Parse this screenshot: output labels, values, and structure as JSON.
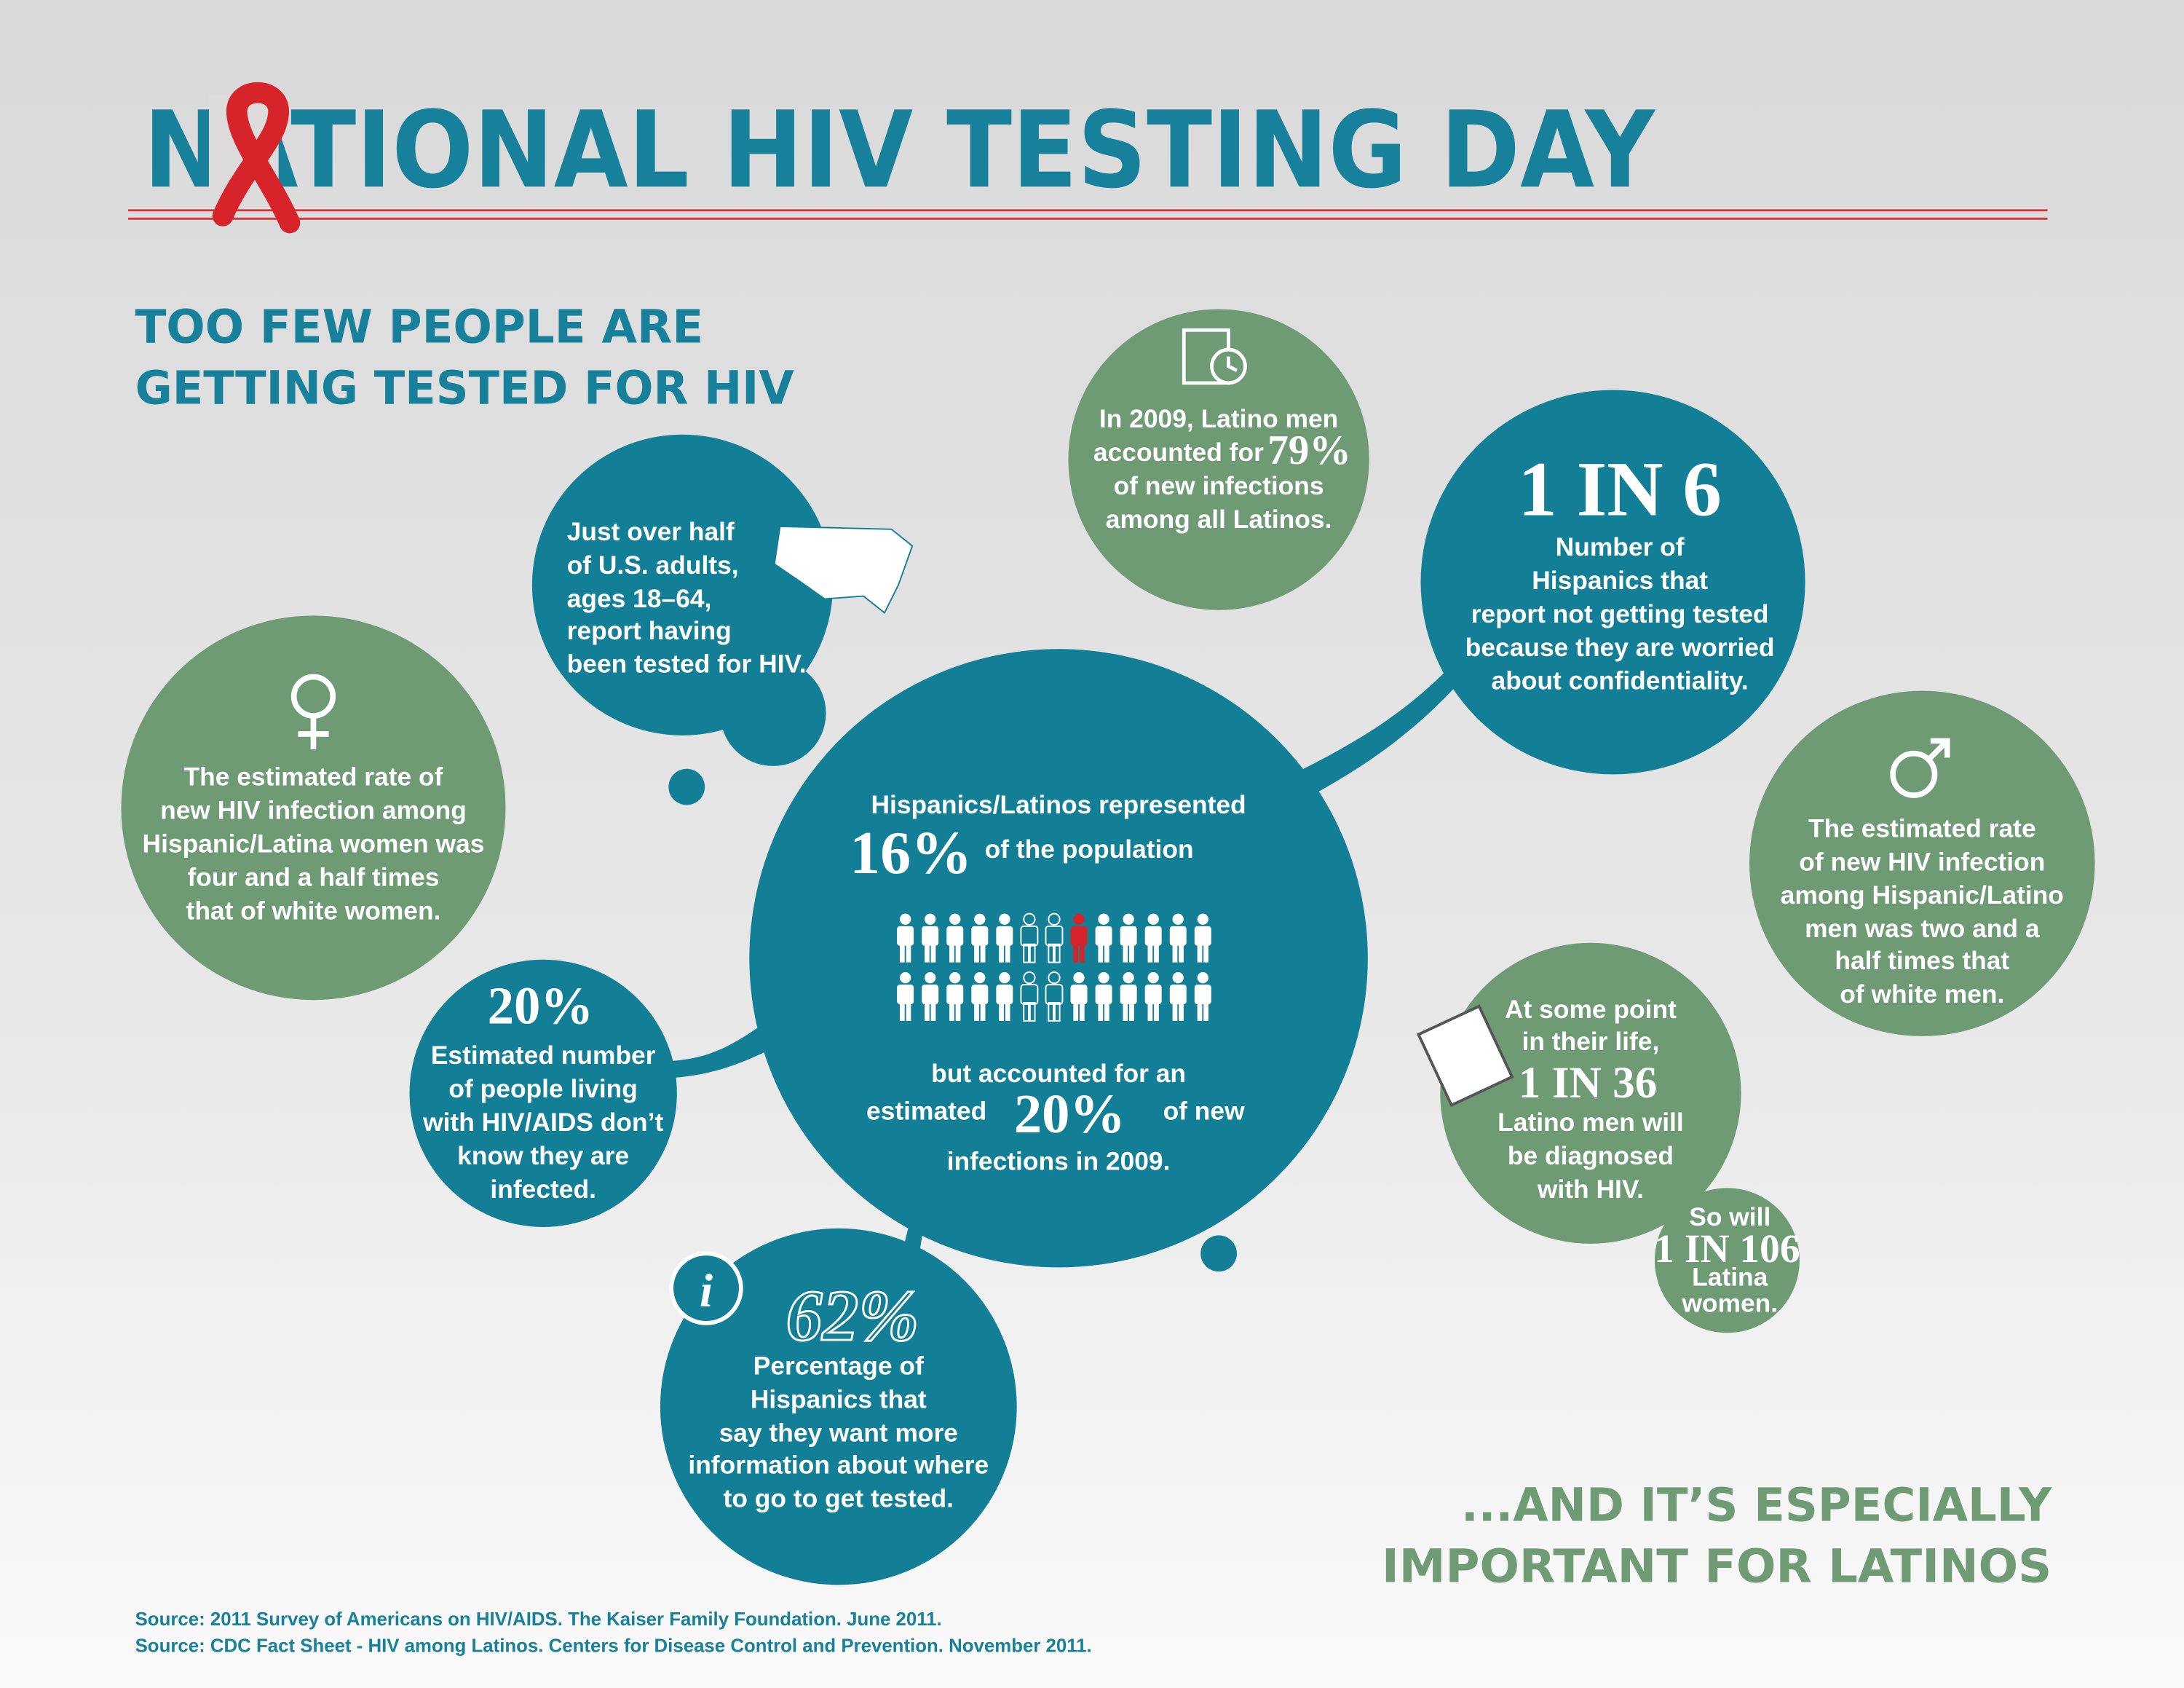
{
  "header": {
    "title": "NATIONAL HIV TESTING DAY",
    "subtitle": [
      "TOO FEW PEOPLE ARE",
      "GETTING TESTED FOR HIV"
    ]
  },
  "bubbles": {
    "women": [
      "The estimated rate of",
      "new HIV infection among",
      "Hispanic/Latina women was",
      "four and a half times",
      "that of white women."
    ],
    "adults": [
      "Just over half",
      "of U.S. adults,",
      "ages 18–64,",
      "report having",
      "been tested for HIV."
    ],
    "latino_men_2009": {
      "lines": [
        "In 2009, Latino men",
        "accounted for",
        "of new infections",
        "among all Latinos."
      ],
      "stat": "79%"
    },
    "confidentiality": {
      "stat": "1 IN 6",
      "lines": [
        "Number of",
        "Hispanics that",
        "report not getting tested",
        "because they are worried",
        "about confidentiality."
      ]
    },
    "population": {
      "lines": [
        "Hispanics/Latinos represented",
        "of the population",
        "but accounted for an",
        "estimated",
        "of new",
        "infections in 2009."
      ],
      "stat_population": "16%",
      "stat_infections": "20%"
    },
    "unaware": {
      "stat": "20%",
      "lines": [
        "Estimated number",
        "of people living",
        "with HIV/AIDS don’t",
        "know they are",
        "infected."
      ]
    },
    "information": {
      "stat": "62%",
      "lines": [
        "Percentage of",
        "Hispanics that",
        "say they want more",
        "information about where",
        "to go to get tested."
      ]
    },
    "men": [
      "The estimated rate",
      "of new HIV infection",
      "among Hispanic/Latino",
      "men was two and a",
      "half times that",
      "of white men."
    ],
    "lifetime_men": {
      "lines": [
        "At some point",
        "in their life,",
        "Latino men will",
        "be diagnosed",
        "with HIV."
      ],
      "stat": "1 IN 36"
    },
    "lifetime_women": {
      "lines": [
        "So will",
        "Latina",
        "women."
      ],
      "stat": "1 IN 106"
    }
  },
  "footer": {
    "tagline": [
      "...AND IT’S ESPECIALLY",
      "IMPORTANT FOR LATINOS"
    ],
    "sources": [
      "Source: 2011 Survey of Americans on HIV/AIDS. The Kaiser Family Foundation. June 2011.",
      "Source: CDC Fact Sheet - HIV among Latinos. Centers for Disease Control and Prevention. November 2011."
    ]
  }
}
